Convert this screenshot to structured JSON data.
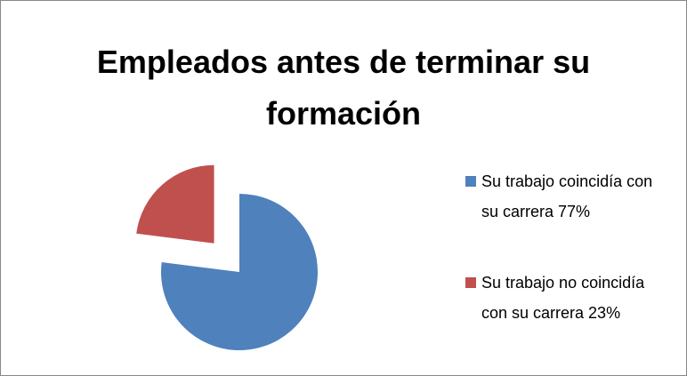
{
  "chart_data": {
    "type": "pie",
    "title": "Empleados antes de terminar su formación",
    "categories": [
      "Su trabajo coincidía con su carrera 77%",
      "Su trabajo no coincidía con su carrera 23%"
    ],
    "values": [
      77,
      23
    ],
    "colors": [
      "#4f81bd",
      "#c0504d"
    ],
    "legend": "right"
  }
}
